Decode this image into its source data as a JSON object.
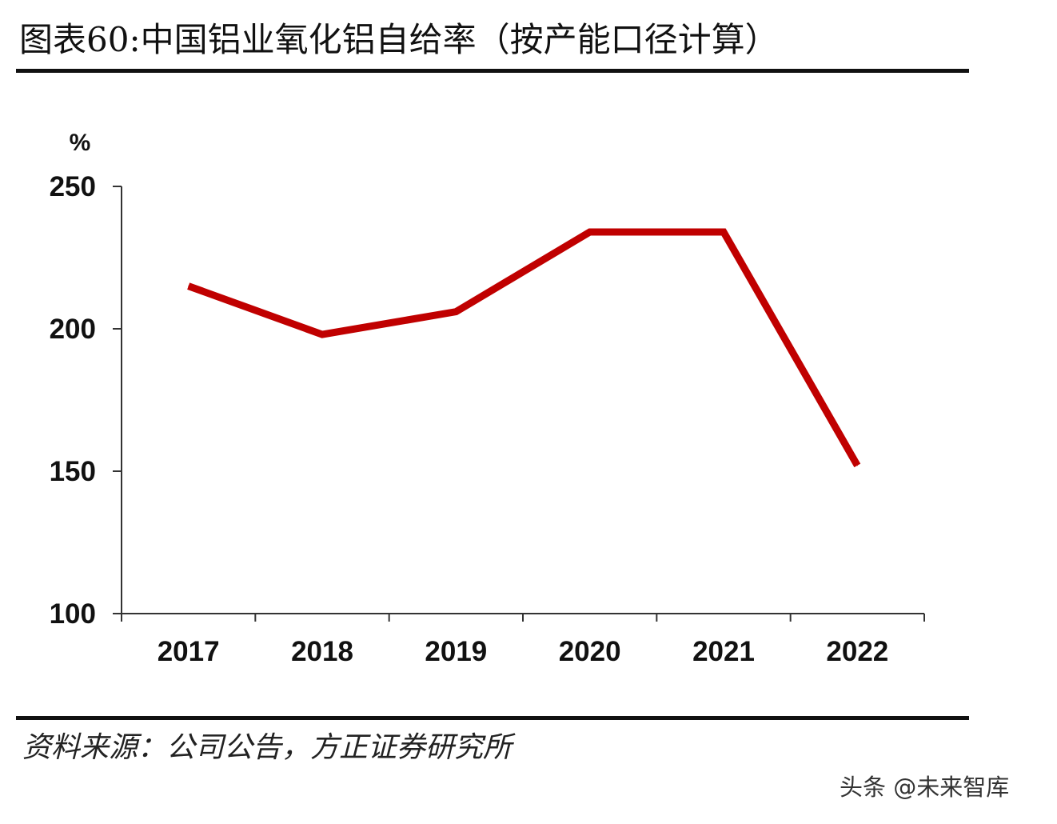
{
  "header": {
    "title": "图表60:中国铝业氧化铝自给率（按产能口径计算）"
  },
  "footer": {
    "source": "资料来源：公司公告，方正证券研究所",
    "watermark": "头条 @未来智库"
  },
  "chart_data": {
    "type": "line",
    "title": "图表60:中国铝业氧化铝自给率（按产能口径计算）",
    "xlabel": "",
    "ylabel": "%",
    "categories": [
      "2017",
      "2018",
      "2019",
      "2020",
      "2021",
      "2022"
    ],
    "series": [
      {
        "values": [
          215,
          198,
          206,
          234,
          234,
          152
        ],
        "color": "#C00000"
      }
    ],
    "ylim": [
      100,
      250
    ],
    "yticks": [
      100,
      150,
      200,
      250
    ],
    "ytick_labels": [
      "100",
      "150",
      "200",
      "250"
    ],
    "grid": false,
    "legend": "none"
  }
}
